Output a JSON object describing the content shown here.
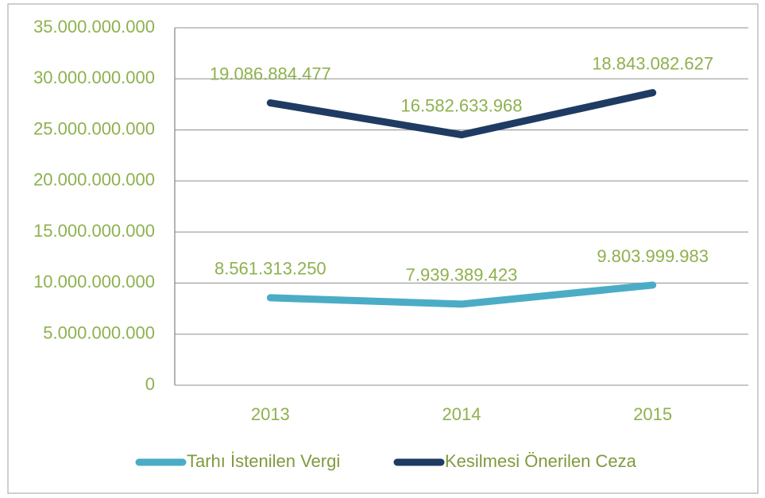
{
  "chart_data": {
    "type": "line",
    "stacked": true,
    "categories": [
      "2013",
      "2014",
      "2015"
    ],
    "series": [
      {
        "name": "Tarhı İstenilen Vergi",
        "color": "#4bacc6",
        "values": [
          8561313250,
          7939389423,
          9803999983
        ],
        "value_labels": [
          "8.561.313.250",
          "7.939.389.423",
          "9.803.999.983"
        ]
      },
      {
        "name": "Kesilmesi Önerilen Ceza",
        "color": "#1f3b63",
        "values": [
          19086884477,
          16582633968,
          18843082627
        ],
        "value_labels": [
          "19.086.884.477",
          "16.582.633.968",
          "18.843.082.627"
        ]
      }
    ],
    "ylim": [
      0,
      35000000000
    ],
    "yticks": [
      0,
      {
        "value": 5000000000,
        "label": "5.000.000.000"
      },
      {
        "value": 10000000000,
        "label": "10.000.000.000"
      },
      {
        "value": 15000000000,
        "label": "15.000.000.000"
      },
      {
        "value": 20000000000,
        "label": "20.000.000.000"
      },
      {
        "value": 25000000000,
        "label": "25.000.000.000"
      },
      {
        "value": 30000000000,
        "label": "30.000.000.000"
      },
      {
        "value": 35000000000,
        "label": "35.000.000.000"
      }
    ],
    "grid": true,
    "legend": "bottom"
  }
}
